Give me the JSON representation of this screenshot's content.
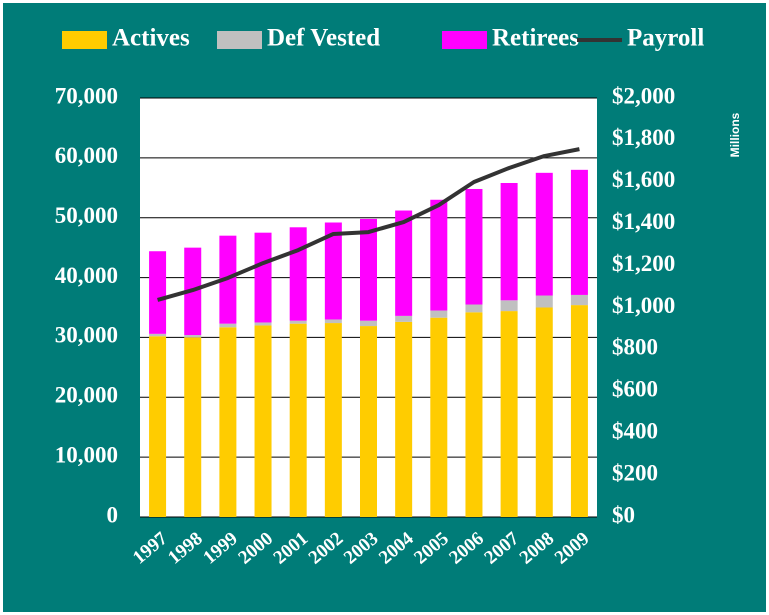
{
  "chart_data": {
    "type": "bar",
    "stacked": true,
    "categories": [
      "1997",
      "1998",
      "1999",
      "2000",
      "2001",
      "2002",
      "2003",
      "2004",
      "2005",
      "2006",
      "2007",
      "2008",
      "2009"
    ],
    "series": [
      {
        "name": "Actives",
        "color": "#ffcc00",
        "values": [
          30200,
          30000,
          31700,
          32000,
          32300,
          32400,
          31900,
          32600,
          33300,
          34200,
          34400,
          35000,
          35400
        ]
      },
      {
        "name": "Def Vested",
        "color": "#c0c0c0",
        "values": [
          400,
          400,
          600,
          500,
          500,
          600,
          900,
          1000,
          1200,
          1300,
          1800,
          2000,
          1700
        ]
      },
      {
        "name": "Retirees",
        "color": "#ff00ff",
        "values": [
          13800,
          14600,
          14700,
          15000,
          15600,
          16200,
          17000,
          17600,
          18500,
          19300,
          19600,
          20500,
          20900
        ]
      },
      {
        "name": "Payroll",
        "color": "#333333",
        "type": "line",
        "axis": "y2",
        "values": [
          1036,
          1083,
          1141,
          1212,
          1274,
          1351,
          1360,
          1408,
          1489,
          1599,
          1666,
          1723,
          1756
        ]
      }
    ],
    "ylim": [
      0,
      70000
    ],
    "yticks": [
      0,
      {
        "value": 10000,
        "label": "10,000"
      },
      {
        "value": 20000,
        "label": "20,000"
      },
      {
        "value": 30000,
        "label": "30,000"
      },
      {
        "value": 40000,
        "label": "40,000"
      },
      {
        "value": 50000,
        "label": "50,000"
      },
      {
        "value": 60000,
        "label": "60,000"
      },
      {
        "value": 70000,
        "label": "70,000"
      }
    ],
    "y2lim": [
      0,
      2000
    ],
    "y2ticks": [
      {
        "value": 0,
        "label": "$0"
      },
      {
        "value": 200,
        "label": "$200"
      },
      {
        "value": 400,
        "label": "$400"
      },
      {
        "value": 600,
        "label": "$600"
      },
      {
        "value": 800,
        "label": "$800"
      },
      {
        "value": 1000,
        "label": "$1,000"
      },
      {
        "value": 1200,
        "label": "$1,200"
      },
      {
        "value": 1400,
        "label": "$1,400"
      },
      {
        "value": 1600,
        "label": "$1,600"
      },
      {
        "value": 1800,
        "label": "$1,800"
      },
      {
        "value": 2000,
        "label": "$2,000"
      }
    ],
    "y2_unit_label": "Millions",
    "grid": true,
    "legend": "top",
    "background": "#007c78"
  }
}
